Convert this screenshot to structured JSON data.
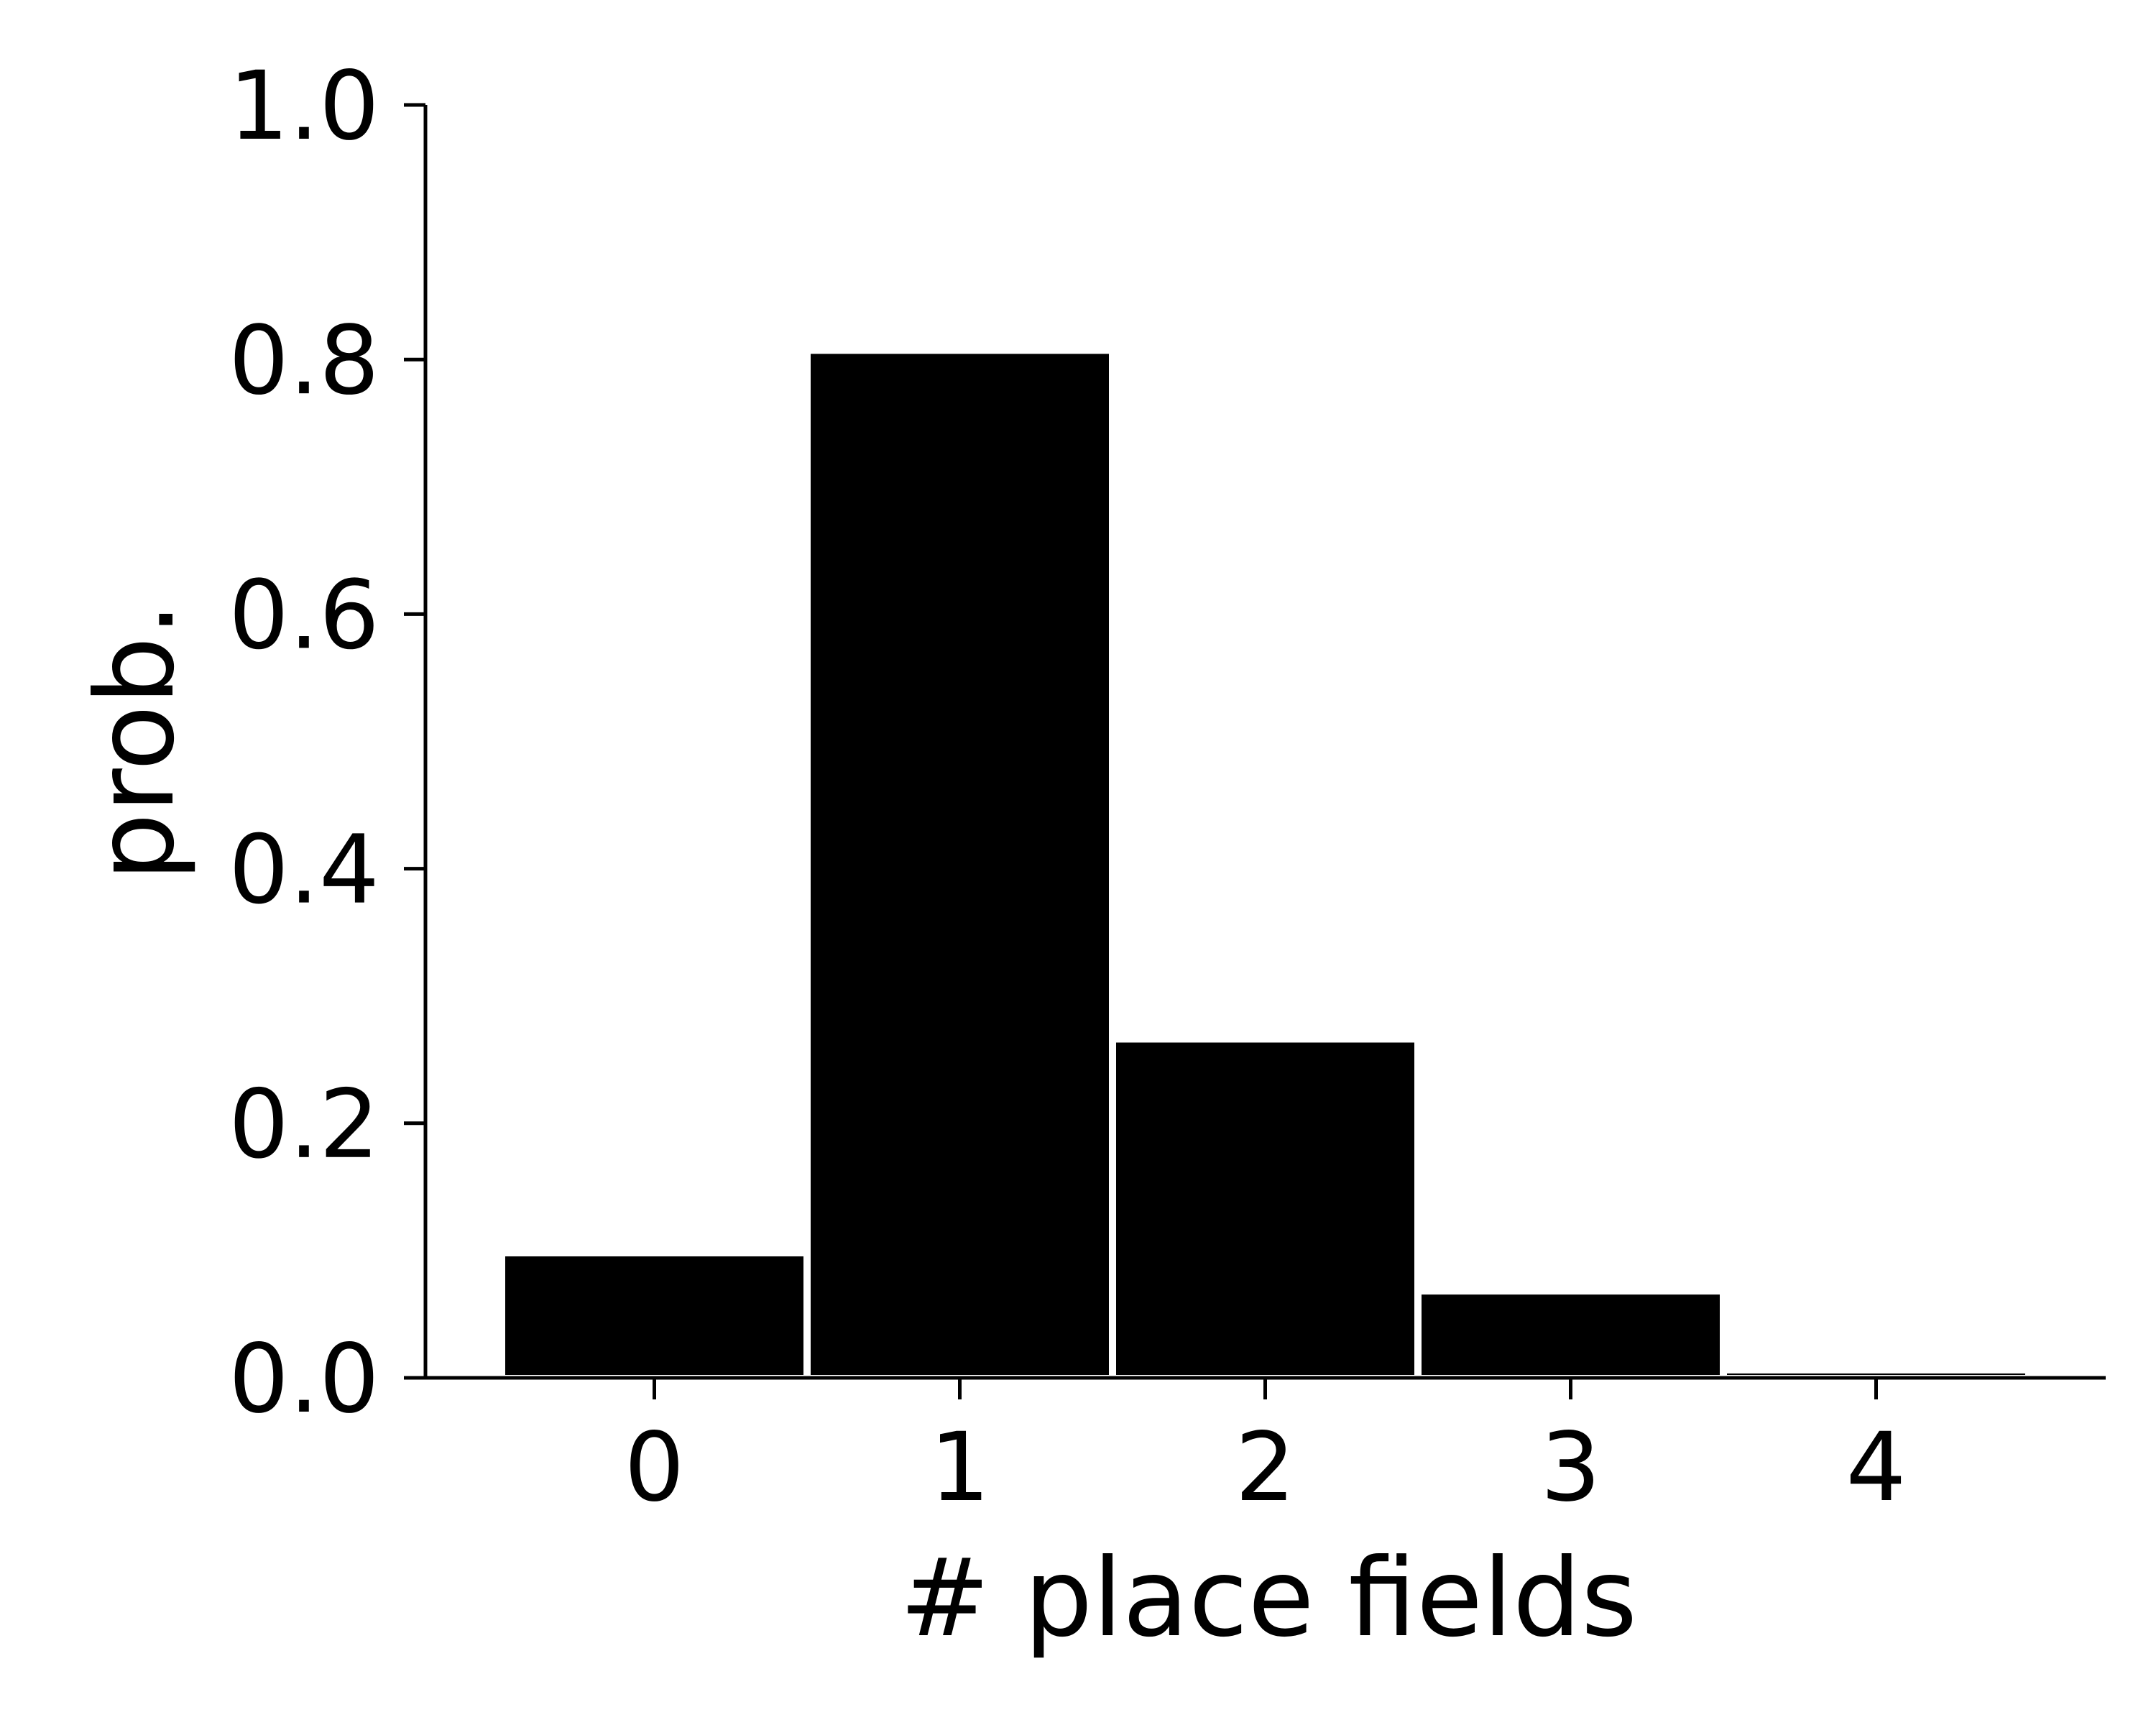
{
  "chart_data": {
    "type": "bar",
    "categories": [
      "0",
      "1",
      "2",
      "3",
      "4"
    ],
    "values": [
      0.096,
      0.805,
      0.264,
      0.066,
      0.004
    ],
    "xlabel": "# place fields",
    "ylabel": "prob.",
    "ylim": [
      0,
      1.0
    ],
    "yticks": [
      "0.0",
      "0.2",
      "0.4",
      "0.6",
      "0.8",
      "1.0"
    ],
    "grid": false,
    "legend": "none",
    "colors": {
      "bar": "#000000",
      "bar_edge": "#ffffff",
      "axis": "#000000"
    }
  }
}
